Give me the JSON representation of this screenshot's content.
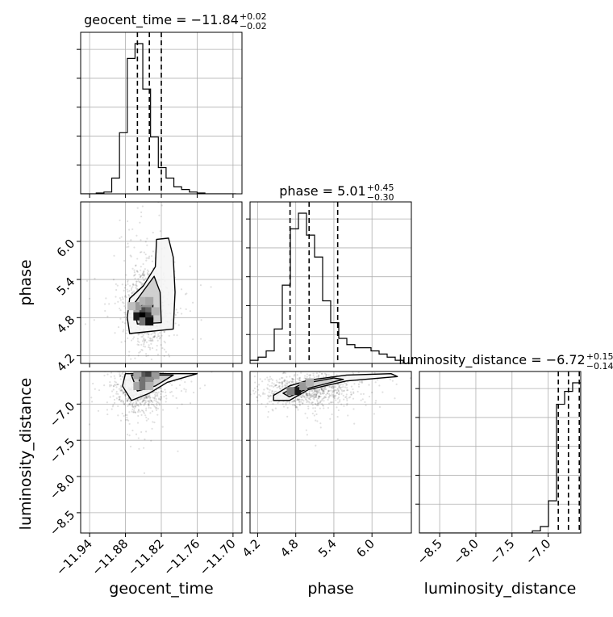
{
  "chart_data": {
    "type": "corner",
    "parameters": [
      "geocent_time",
      "phase",
      "luminosity_distance"
    ],
    "titles": [
      {
        "param": "geocent_time",
        "label": "geocent_time = ",
        "median": "−11.84",
        "plus": "+0.02",
        "minus": "−0.02"
      },
      {
        "param": "phase",
        "label": "phase = ",
        "median": "5.01",
        "plus": "+0.45",
        "minus": "−0.30"
      },
      {
        "param": "luminosity_distance",
        "label": "luminosity_distance = ",
        "median": "−6.72",
        "plus": "+0.15",
        "minus": "−0.14"
      }
    ],
    "axes": {
      "geocent_time": {
        "range": [
          -11.955,
          -11.685
        ],
        "ticks": [
          -11.94,
          -11.88,
          -11.82,
          -11.76,
          -11.7
        ],
        "tick_labels": [
          "−11.94",
          "−11.88",
          "−11.82",
          "−11.76",
          "−11.70"
        ]
      },
      "phase": {
        "range": [
          4.08,
          6.62
        ],
        "ticks": [
          4.2,
          4.8,
          5.4,
          6.0
        ],
        "tick_labels": [
          "4.2",
          "4.8",
          "5.4",
          "6.0"
        ]
      },
      "luminosity_distance": {
        "range": [
          -8.78,
          -6.55
        ],
        "ticks": [
          -8.5,
          -8.0,
          -7.5,
          -7.0
        ],
        "tick_labels": [
          "−8.5",
          "−8.0",
          "−7.5",
          "−7.0"
        ]
      }
    },
    "axis_labels": {
      "x": [
        "geocent_time",
        "phase",
        "luminosity_distance"
      ],
      "y": [
        "phase",
        "luminosity_distance"
      ]
    },
    "quantiles": {
      "geocent_time": [
        -11.86,
        -11.84,
        -11.82
      ],
      "phase": [
        4.71,
        5.01,
        5.46
      ],
      "luminosity_distance": [
        -6.86,
        -6.72,
        -6.57
      ]
    },
    "histograms": {
      "geocent_time": {
        "edges": [
          -11.955,
          -11.942,
          -11.929,
          -11.916,
          -11.903,
          -11.89,
          -11.877,
          -11.864,
          -11.851,
          -11.838,
          -11.825,
          -11.812,
          -11.799,
          -11.786,
          -11.773,
          -11.76,
          -11.747,
          -11.734,
          -11.721,
          -11.708,
          -11.695
        ],
        "counts": [
          0,
          0,
          1,
          2,
          18,
          70,
          155,
          172,
          120,
          65,
          30,
          18,
          8,
          5,
          2,
          1,
          0,
          0,
          0,
          0
        ]
      },
      "phase": {
        "edges": [
          4.08,
          4.207,
          4.334,
          4.461,
          4.588,
          4.715,
          4.842,
          4.969,
          5.096,
          5.223,
          5.35,
          5.477,
          5.604,
          5.731,
          5.858,
          5.985,
          6.112,
          6.239,
          6.366,
          6.493,
          6.62
        ],
        "counts": [
          1,
          2,
          4,
          11,
          25,
          43,
          48,
          41,
          34,
          20,
          13,
          8,
          6,
          5,
          5,
          4,
          3,
          2,
          1,
          0
        ]
      },
      "luminosity_distance": {
        "edges": [
          -8.78,
          -8.669,
          -8.557,
          -8.446,
          -8.334,
          -8.223,
          -8.111,
          -8.0,
          -7.888,
          -7.777,
          -7.665,
          -7.554,
          -7.442,
          -7.331,
          -7.219,
          -7.108,
          -6.996,
          -6.885,
          -6.773,
          -6.662,
          -6.55
        ],
        "counts": [
          0,
          0,
          0,
          0,
          0,
          0,
          0,
          0,
          0,
          0,
          0,
          0,
          0,
          0,
          1,
          3,
          15,
          60,
          66,
          70
        ]
      }
    },
    "densities": {
      "phase_vs_geocent_time": {
        "x": "geocent_time",
        "y": "phase",
        "center": [
          -11.845,
          4.98
        ],
        "spread": [
          0.018,
          0.32
        ],
        "cells": [
          [
            -11.86,
            4.9,
            0.35
          ],
          [
            -11.85,
            4.9,
            0.7
          ],
          [
            -11.84,
            4.9,
            0.6
          ],
          [
            -11.86,
            4.82,
            0.9
          ],
          [
            -11.85,
            4.82,
            1.0
          ],
          [
            -11.84,
            4.82,
            0.8
          ],
          [
            -11.85,
            4.74,
            0.55
          ],
          [
            -11.84,
            4.74,
            0.95
          ],
          [
            -11.86,
            4.98,
            0.4
          ],
          [
            -11.85,
            5.06,
            0.3
          ],
          [
            -11.84,
            5.06,
            0.35
          ],
          [
            -11.87,
            4.98,
            0.25
          ],
          [
            -11.83,
            4.9,
            0.3
          ]
        ],
        "contours": [
          [
            [
              -11.873,
              4.55
            ],
            [
              -11.8,
              4.62
            ],
            [
              -11.797,
              5.2
            ],
            [
              -11.8,
              5.75
            ],
            [
              -11.808,
              6.05
            ],
            [
              -11.828,
              6.03
            ],
            [
              -11.83,
              5.6
            ],
            [
              -11.85,
              5.3
            ],
            [
              -11.873,
              5.1
            ],
            [
              -11.877,
              4.8
            ]
          ],
          [
            [
              -11.86,
              4.7
            ],
            [
              -11.82,
              4.72
            ],
            [
              -11.822,
              5.2
            ],
            [
              -11.832,
              5.45
            ],
            [
              -11.85,
              5.22
            ],
            [
              -11.867,
              5.0
            ]
          ],
          [
            [
              -11.855,
              4.72
            ],
            [
              -11.836,
              4.7
            ],
            [
              -11.834,
              5.0
            ],
            [
              -11.845,
              5.05
            ],
            [
              -11.86,
              4.95
            ]
          ]
        ]
      },
      "luminosity_distance_vs_geocent_time": {
        "x": "geocent_time",
        "y": "luminosity_distance",
        "center": [
          -11.855,
          -6.75
        ],
        "spread": [
          0.02,
          0.18
        ],
        "cells": [
          [
            -11.85,
            -6.6,
            0.65
          ],
          [
            -11.84,
            -6.6,
            0.75
          ],
          [
            -11.83,
            -6.6,
            0.4
          ],
          [
            -11.86,
            -6.6,
            0.35
          ],
          [
            -11.85,
            -6.68,
            0.55
          ],
          [
            -11.84,
            -6.68,
            0.45
          ],
          [
            -11.86,
            -6.75,
            0.35
          ],
          [
            -11.85,
            -6.75,
            0.55
          ],
          [
            -11.84,
            -6.75,
            0.3
          ]
        ],
        "contours": [
          [
            [
              -11.88,
              -6.58
            ],
            [
              -11.76,
              -6.58
            ],
            [
              -11.81,
              -6.7
            ],
            [
              -11.84,
              -6.85
            ],
            [
              -11.87,
              -6.95
            ],
            [
              -11.885,
              -6.75
            ]
          ],
          [
            [
              -11.87,
              -6.6
            ],
            [
              -11.8,
              -6.6
            ],
            [
              -11.83,
              -6.75
            ],
            [
              -11.86,
              -6.82
            ]
          ],
          [
            [
              -11.855,
              -6.6
            ],
            [
              -11.825,
              -6.6
            ],
            [
              -11.84,
              -6.7
            ],
            [
              -11.857,
              -6.68
            ]
          ]
        ]
      },
      "luminosity_distance_vs_phase": {
        "x": "phase",
        "y": "luminosity_distance",
        "center": [
          5.0,
          -6.8
        ],
        "spread": [
          0.35,
          0.12
        ],
        "cells": [
          [
            4.82,
            -6.82,
            0.9
          ],
          [
            4.72,
            -6.82,
            0.5
          ],
          [
            4.92,
            -6.75,
            0.4
          ],
          [
            5.02,
            -6.7,
            0.3
          ]
        ],
        "contours": [
          [
            [
              4.45,
              -6.88
            ],
            [
              4.7,
              -6.75
            ],
            [
              5.0,
              -6.67
            ],
            [
              5.6,
              -6.6
            ],
            [
              6.3,
              -6.58
            ],
            [
              6.4,
              -6.62
            ],
            [
              5.6,
              -6.68
            ],
            [
              5.0,
              -6.8
            ],
            [
              4.7,
              -6.95
            ],
            [
              4.45,
              -6.95
            ]
          ],
          [
            [
              4.6,
              -6.85
            ],
            [
              4.9,
              -6.72
            ],
            [
              5.4,
              -6.64
            ],
            [
              5.55,
              -6.66
            ],
            [
              5.0,
              -6.78
            ],
            [
              4.7,
              -6.9
            ]
          ],
          [
            [
              4.7,
              -6.83
            ],
            [
              4.9,
              -6.77
            ],
            [
              4.95,
              -6.8
            ],
            [
              4.75,
              -6.88
            ]
          ]
        ]
      }
    }
  }
}
